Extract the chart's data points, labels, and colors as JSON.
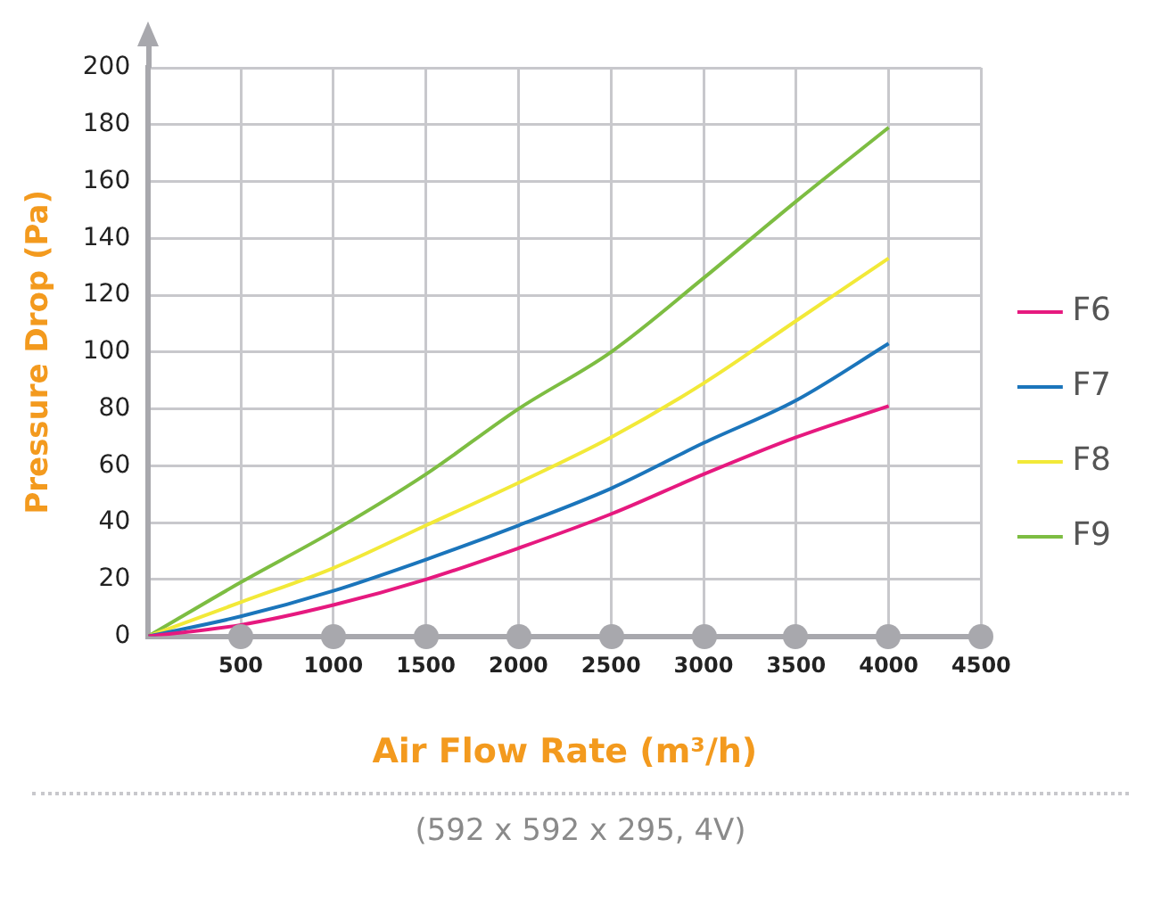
{
  "chart_data": {
    "type": "line",
    "xlabel": "Air Flow Rate (m³/h)",
    "ylabel": "Pressure Drop (Pa)",
    "x": [
      0,
      500,
      1000,
      1500,
      2000,
      2500,
      3000,
      3500,
      4000
    ],
    "series": [
      {
        "name": "F6",
        "color": "#e6197f",
        "values": [
          0,
          4,
          11,
          20,
          31,
          43,
          57,
          70,
          81
        ]
      },
      {
        "name": "F7",
        "color": "#1b75bb",
        "values": [
          0,
          7,
          16,
          27,
          39,
          52,
          68,
          83,
          103
        ]
      },
      {
        "name": "F8",
        "color": "#f2e938",
        "values": [
          0,
          12,
          24,
          39,
          54,
          70,
          89,
          111,
          133
        ]
      },
      {
        "name": "F9",
        "color": "#7dbd42",
        "values": [
          0,
          19,
          37,
          57,
          80,
          100,
          126,
          153,
          179
        ]
      }
    ],
    "xlim": [
      0,
      4500
    ],
    "xticks": [
      500,
      1000,
      1500,
      2000,
      2500,
      3000,
      3500,
      4000,
      4500
    ],
    "ylim": [
      0,
      200
    ],
    "yticks": [
      0,
      20,
      40,
      60,
      80,
      100,
      120,
      140,
      160,
      180,
      200
    ],
    "grid": true,
    "legend": "right",
    "marker": "none",
    "line_style": "solid",
    "annotations": [
      "(592 x 592 x 295, 4V)"
    ]
  }
}
